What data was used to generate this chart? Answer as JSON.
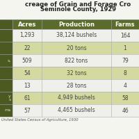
{
  "title_line1": "creage of Grain and Forage Cro",
  "title_line2": "Seminole County, 1929",
  "source": "United States Census of Agriculture, 1930",
  "columns": [
    "Acres",
    "Production",
    "Farms"
  ],
  "rows": [
    {
      "label": "",
      "acres": "1,293",
      "production": "38,124 bushels",
      "farms": "164",
      "highlight": false
    },
    {
      "label": "",
      "acres": "22",
      "production": "20 tons",
      "farms": "1",
      "highlight": true
    },
    {
      "label": "s,",
      "acres": "509",
      "production": "822 tons",
      "farms": "79",
      "highlight": false
    },
    {
      "label": "",
      "acres": "54",
      "production": "32 tons",
      "farms": "8",
      "highlight": true
    },
    {
      "label": "",
      "acres": "13",
      "production": "28 tons",
      "farms": "4",
      "highlight": false
    },
    {
      "label": "y\ns",
      "acres": "61",
      "production": "4,949 bushels",
      "farms": "58",
      "highlight": true
    },
    {
      "label": "ms",
      "acres": "57",
      "production": "4,465 bushels",
      "farms": "46",
      "highlight": false
    }
  ],
  "header_bg": "#5a6b2a",
  "highlight_bg": "#d4d9a0",
  "white_bg": "#f5f5f0",
  "row_white": "#f0f0eb",
  "header_text": "#ffffff",
  "body_text": "#444444",
  "label_text": "#555555",
  "left_col_bg": "#4a5a20",
  "title_color": "#222222",
  "source_color": "#555555"
}
